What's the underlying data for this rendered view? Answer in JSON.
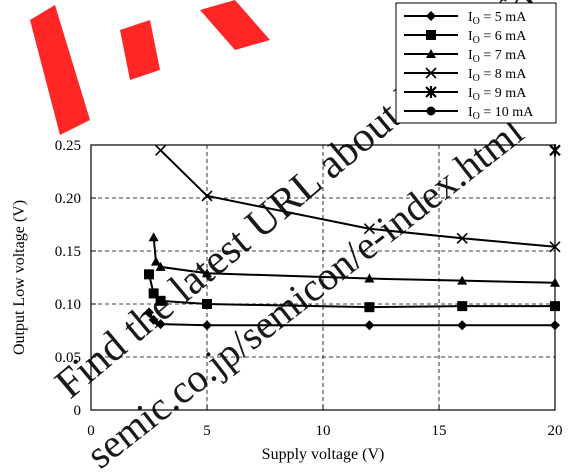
{
  "chart_data": {
    "type": "line",
    "title": "",
    "xlabel": "Supply voltage  (V)",
    "ylabel": "Output Low voltage  (V)",
    "xlim": [
      0,
      20
    ],
    "ylim": [
      0,
      0.25
    ],
    "x_ticks": [
      0,
      5,
      10,
      15,
      20
    ],
    "x_tick_labels": [
      "0",
      "5",
      "10",
      "15",
      "20"
    ],
    "y_ticks": [
      0,
      0.05,
      0.1,
      0.15,
      0.2,
      0.25
    ],
    "y_tick_labels": [
      "0",
      "0.05",
      "0.10",
      "0.15",
      "0.20",
      "0.25"
    ],
    "grid": true,
    "grid_style": "dashed",
    "legend_position": "top-right",
    "series": [
      {
        "name": "I_O = 5 mA",
        "label_main": "I",
        "label_sub": "O",
        "label_rest": " = 5 mA",
        "marker": "diamond",
        "x": [
          2.5,
          2.7,
          3.0,
          5,
          12,
          16,
          20
        ],
        "y": [
          0.092,
          0.085,
          0.081,
          0.08,
          0.08,
          0.08,
          0.08
        ]
      },
      {
        "name": "I_O = 6 mA",
        "label_main": "I",
        "label_sub": "O",
        "label_rest": " = 6 mA",
        "marker": "square",
        "x": [
          2.5,
          2.7,
          3.0,
          5,
          12,
          16,
          20
        ],
        "y": [
          0.128,
          0.11,
          0.103,
          0.1,
          0.097,
          0.098,
          0.098
        ]
      },
      {
        "name": "I_O = 7 mA",
        "label_main": "I",
        "label_sub": "O",
        "label_rest": " = 7 mA",
        "marker": "triangle",
        "x": [
          2.7,
          2.8,
          3.0,
          5,
          12,
          16,
          20
        ],
        "y": [
          0.163,
          0.14,
          0.135,
          0.129,
          0.124,
          0.122,
          0.12
        ]
      },
      {
        "name": "I_O = 8 mA",
        "label_main": "I",
        "label_sub": "O",
        "label_rest": " = 8 mA",
        "marker": "x",
        "x": [
          3.0,
          5,
          12,
          16,
          20
        ],
        "y": [
          0.245,
          0.202,
          0.171,
          0.162,
          0.154
        ]
      },
      {
        "name": "I_O = 9 mA",
        "label_main": "I",
        "label_sub": "O",
        "label_rest": " = 9 mA",
        "marker": "asterisk",
        "x": [
          20
        ],
        "y": [
          0.245
        ]
      },
      {
        "name": "I_O = 10 mA",
        "label_main": "I",
        "label_sub": "O",
        "label_rest": " = 10 mA",
        "marker": "circle",
        "x": [],
        "y": []
      }
    ],
    "watermark": [
      "Find the latest URL about latest info",
      "semic.co.jp/semicon/e-index.html"
    ]
  }
}
